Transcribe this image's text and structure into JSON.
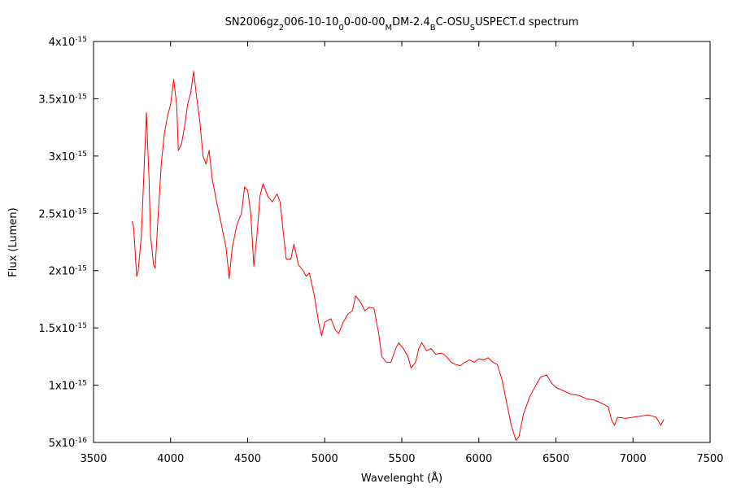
{
  "chart_data": {
    "type": "line",
    "title": [
      {
        "text": "SN2006gz"
      },
      {
        "text": "2",
        "sub": true
      },
      {
        "text": "006-10-10"
      },
      {
        "text": "0",
        "sub": true
      },
      {
        "text": "0-00-00"
      },
      {
        "text": "M",
        "sub": true
      },
      {
        "text": "DM-2.4"
      },
      {
        "text": "B",
        "sub": true
      },
      {
        "text": "C-OSU"
      },
      {
        "text": "S",
        "sub": true
      },
      {
        "text": "USPECT.d spectrum"
      }
    ],
    "x_label": "Wavelenght (Å)",
    "y_label": "Flux (Lumen)",
    "xlim": [
      3500,
      7500
    ],
    "xticks": [
      3500,
      4000,
      4500,
      5000,
      5500,
      6000,
      6500,
      7000,
      7500
    ],
    "ylim": [
      5e-16,
      4e-15
    ],
    "yticks": [
      {
        "value": 5e-16,
        "label": "5x10",
        "exp": "-16"
      },
      {
        "value": 1e-15,
        "label": "1x10",
        "exp": "-15"
      },
      {
        "value": 1.5e-15,
        "label": "1.5x10",
        "exp": "-15"
      },
      {
        "value": 2e-15,
        "label": "2x10",
        "exp": "-15"
      },
      {
        "value": 2.5e-15,
        "label": "2.5x10",
        "exp": "-15"
      },
      {
        "value": 3e-15,
        "label": "3x10",
        "exp": "-15"
      },
      {
        "value": 3.5e-15,
        "label": "3.5x10",
        "exp": "-15"
      },
      {
        "value": 4e-15,
        "label": "4x10",
        "exp": "-15"
      }
    ],
    "grid": false,
    "series": [
      {
        "color": "#ff0000",
        "x": [
          3750,
          3760,
          3780,
          3790,
          3810,
          3843,
          3860,
          3870,
          3890,
          3900,
          3920,
          3940,
          3960,
          3980,
          4000,
          4020,
          4040,
          4050,
          4070,
          4090,
          4110,
          4130,
          4150,
          4170,
          4190,
          4210,
          4230,
          4250,
          4270,
          4300,
          4330,
          4360,
          4380,
          4400,
          4430,
          4460,
          4480,
          4500,
          4520,
          4540,
          4560,
          4580,
          4600,
          4630,
          4660,
          4690,
          4710,
          4730,
          4750,
          4780,
          4800,
          4830,
          4860,
          4880,
          4900,
          4930,
          4960,
          4980,
          5000,
          5040,
          5070,
          5090,
          5120,
          5150,
          5180,
          5200,
          5230,
          5260,
          5290,
          5320,
          5350,
          5370,
          5400,
          5430,
          5460,
          5480,
          5510,
          5540,
          5560,
          5590,
          5610,
          5630,
          5660,
          5690,
          5720,
          5760,
          5790,
          5820,
          5850,
          5880,
          5910,
          5940,
          5970,
          6000,
          6030,
          6060,
          6090,
          6120,
          6150,
          6180,
          6210,
          6240,
          6260,
          6290,
          6330,
          6370,
          6400,
          6440,
          6470,
          6500,
          6550,
          6600,
          6650,
          6700,
          6750,
          6800,
          6840,
          6860,
          6880,
          6900,
          6950,
          7000,
          7050,
          7100,
          7150,
          7180,
          7200
        ],
        "values": [
          2.43e-15,
          2.38e-15,
          1.95e-15,
          2e-15,
          2.3e-15,
          3.38e-15,
          2.8e-15,
          2.3e-15,
          2.05e-15,
          2.02e-15,
          2.5e-15,
          2.94e-15,
          3.2e-15,
          3.35e-15,
          3.45e-15,
          3.67e-15,
          3.44e-15,
          3.05e-15,
          3.1e-15,
          3.25e-15,
          3.45e-15,
          3.55e-15,
          3.74e-15,
          3.5e-15,
          3.3e-15,
          3e-15,
          2.93e-15,
          3.05e-15,
          2.8e-15,
          2.59e-15,
          2.4e-15,
          2.2e-15,
          1.93e-15,
          2.2e-15,
          2.4e-15,
          2.5e-15,
          2.73e-15,
          2.7e-15,
          2.5e-15,
          2.04e-15,
          2.3e-15,
          2.65e-15,
          2.76e-15,
          2.65e-15,
          2.6e-15,
          2.67e-15,
          2.6e-15,
          2.35e-15,
          2.1e-15,
          2.1e-15,
          2.23e-15,
          2.05e-15,
          2e-15,
          1.95e-15,
          1.98e-15,
          1.8e-15,
          1.55e-15,
          1.43e-15,
          1.55e-15,
          1.58e-15,
          1.48e-15,
          1.45e-15,
          1.55e-15,
          1.62e-15,
          1.65e-15,
          1.78e-15,
          1.73e-15,
          1.65e-15,
          1.68e-15,
          1.67e-15,
          1.45e-15,
          1.25e-15,
          1.2e-15,
          1.2e-15,
          1.32e-15,
          1.37e-15,
          1.32e-15,
          1.25e-15,
          1.15e-15,
          1.2e-15,
          1.32e-15,
          1.37e-15,
          1.3e-15,
          1.32e-15,
          1.27e-15,
          1.28e-15,
          1.25e-15,
          1.2e-15,
          1.18e-15,
          1.17e-15,
          1.2e-15,
          1.22e-15,
          1.2e-15,
          1.23e-15,
          1.22e-15,
          1.24e-15,
          1.2e-15,
          1.18e-15,
          1.05e-15,
          8.5e-16,
          6.5e-16,
          5.2e-16,
          5.5e-16,
          7.5e-16,
          9e-16,
          1e-15,
          1.07e-15,
          1.09e-15,
          1.02e-15,
          9.8e-16,
          9.5e-16,
          9.2e-16,
          9.1e-16,
          8.8e-16,
          8.7e-16,
          8.4e-16,
          8.1e-16,
          7e-16,
          6.5e-16,
          7.2e-16,
          7.1e-16,
          7.2e-16,
          7.3e-16,
          7.4e-16,
          7.2e-16,
          6.5e-16,
          7e-16
        ]
      }
    ]
  }
}
